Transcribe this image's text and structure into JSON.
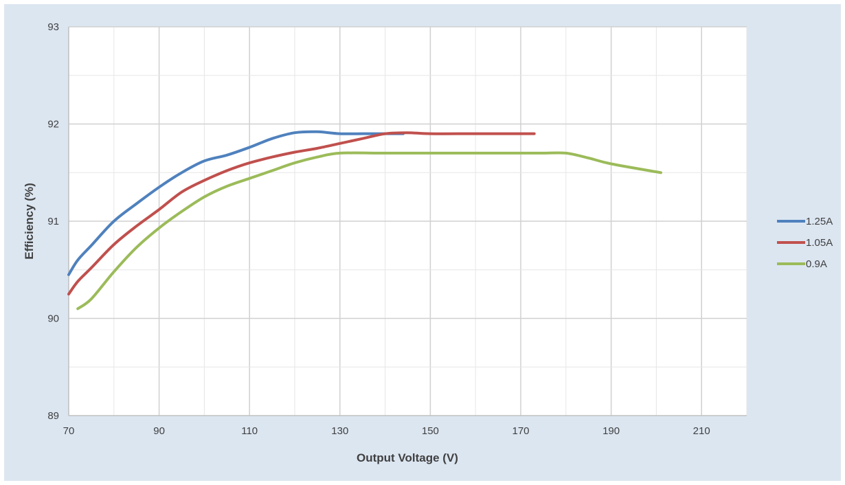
{
  "chart_data": {
    "type": "line",
    "title": "",
    "xlabel": "Output Voltage (V)",
    "ylabel": "Efficiency (%)",
    "xlim": [
      70,
      220
    ],
    "ylim": [
      89,
      93
    ],
    "xticks": [
      70,
      90,
      110,
      130,
      150,
      170,
      190,
      210
    ],
    "yticks": [
      89,
      90,
      91,
      92,
      93
    ],
    "grid": true,
    "legend_position": "right",
    "series": [
      {
        "name": "1.25A",
        "color": "#4f81bd",
        "x": [
          70,
          72,
          75,
          80,
          85,
          90,
          95,
          100,
          105,
          110,
          115,
          120,
          125,
          130,
          135,
          140,
          144
        ],
        "y": [
          90.45,
          90.6,
          90.75,
          91.0,
          91.18,
          91.35,
          91.5,
          91.62,
          91.68,
          91.76,
          91.85,
          91.91,
          91.92,
          91.9,
          91.9,
          91.9,
          91.9
        ]
      },
      {
        "name": "1.05A",
        "color": "#c0504d",
        "x": [
          70,
          72,
          75,
          80,
          85,
          90,
          95,
          100,
          105,
          110,
          115,
          120,
          125,
          130,
          135,
          140,
          145,
          150,
          160,
          173
        ],
        "y": [
          90.25,
          90.38,
          90.52,
          90.76,
          90.95,
          91.12,
          91.3,
          91.42,
          91.52,
          91.6,
          91.66,
          91.71,
          91.75,
          91.8,
          91.85,
          91.9,
          91.91,
          91.9,
          91.9,
          91.9
        ]
      },
      {
        "name": "0.9A",
        "color": "#9bbb59",
        "x": [
          72,
          75,
          80,
          85,
          90,
          95,
          100,
          105,
          110,
          115,
          120,
          125,
          130,
          140,
          150,
          160,
          170,
          175,
          180,
          185,
          190,
          201
        ],
        "y": [
          90.1,
          90.2,
          90.48,
          90.73,
          90.93,
          91.1,
          91.25,
          91.36,
          91.44,
          91.52,
          91.6,
          91.66,
          91.7,
          91.7,
          91.7,
          91.7,
          91.7,
          91.7,
          91.7,
          91.65,
          91.59,
          91.5
        ]
      }
    ]
  }
}
